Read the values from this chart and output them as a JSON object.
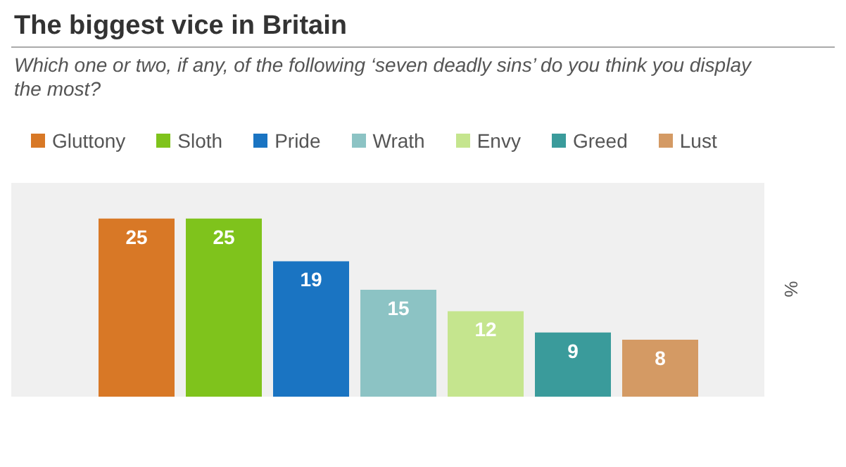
{
  "chart_data": {
    "type": "bar",
    "title": "The biggest vice in Britain",
    "subtitle": "Which one or two,  if any, of the following ‘seven deadly sins’ do you think you display the most?",
    "ylabel": "%",
    "categories": [
      null
    ],
    "series": [
      {
        "name": "Gluttony",
        "color": "#d87826",
        "values": [
          25
        ]
      },
      {
        "name": "Sloth",
        "color": "#7fc31c",
        "values": [
          25
        ]
      },
      {
        "name": "Pride",
        "color": "#1a74c2",
        "values": [
          19
        ]
      },
      {
        "name": "Wrath",
        "color": "#8cc3c4",
        "values": [
          15
        ]
      },
      {
        "name": "Envy",
        "color": "#c5e58e",
        "values": [
          12
        ]
      },
      {
        "name": "Greed",
        "color": "#3a9b9b",
        "values": [
          9
        ]
      },
      {
        "name": "Lust",
        "color": "#d49a64",
        "values": [
          8
        ]
      }
    ],
    "ylim": [
      0,
      30
    ],
    "data_labels": true,
    "legend": "top left",
    "tick_labels": false
  }
}
